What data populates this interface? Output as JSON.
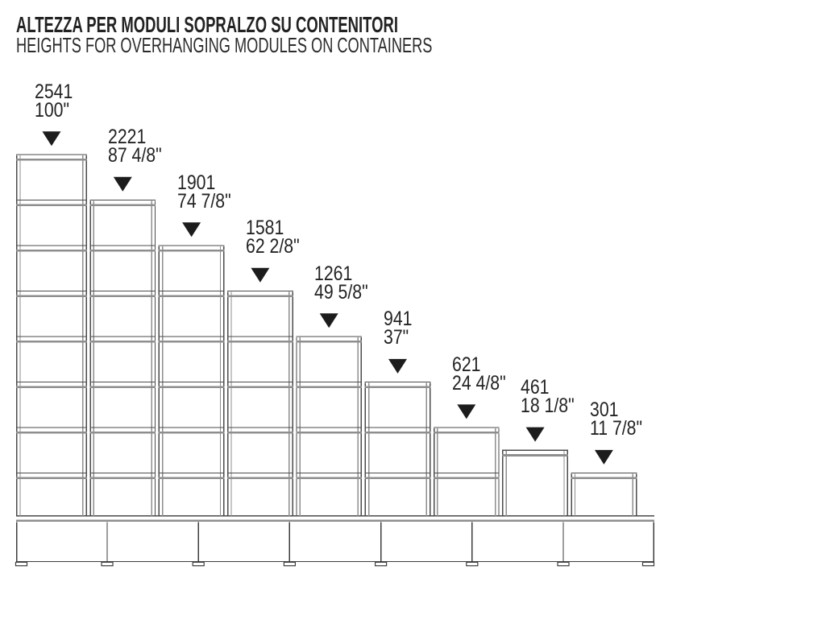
{
  "title": "ALTEZZA PER MODULI SOPRALZO SU CONTENITORI",
  "subtitle": "HEIGHTS FOR OVERHANGING MODULES ON CONTAINERS",
  "units": [
    {
      "mm": "2541",
      "inches": "100\""
    },
    {
      "mm": "2221",
      "inches": "87 4/8\""
    },
    {
      "mm": "1901",
      "inches": "74 7/8\""
    },
    {
      "mm": "1581",
      "inches": "62 2/8\""
    },
    {
      "mm": "1261",
      "inches": "49 5/8\""
    },
    {
      "mm": "941",
      "inches": "37\""
    },
    {
      "mm": "621",
      "inches": "24 4/8\""
    },
    {
      "mm": "461",
      "inches": "18 1/8\""
    },
    {
      "mm": "301",
      "inches": "11 7/8\""
    }
  ],
  "shelf_step_mm": 320,
  "min_shelf_mm": 301,
  "colors": {
    "text": "#232323",
    "line_dark": "#4b4b4b",
    "line_gray": "#8e8e8e",
    "line_black": "#3d3d3d",
    "arrow": "#1c1c1c",
    "background": "#ffffff"
  }
}
